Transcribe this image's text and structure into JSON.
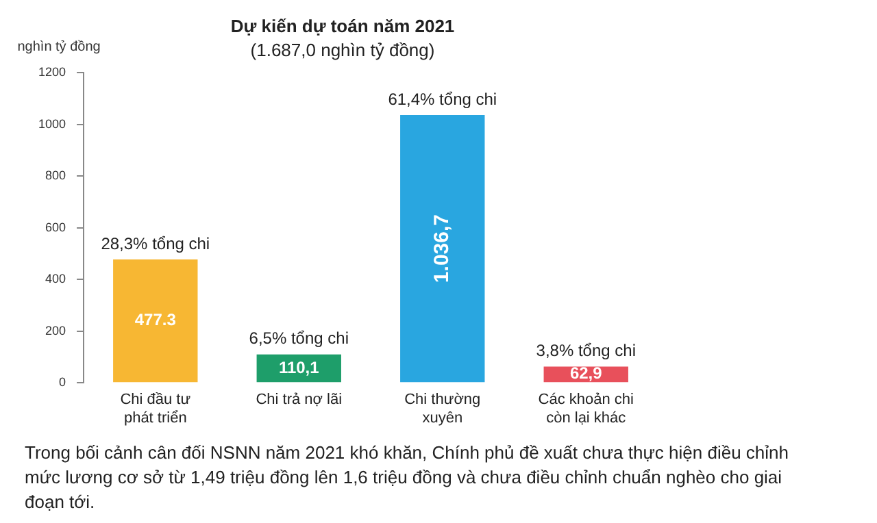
{
  "chart_data": {
    "type": "bar",
    "title": "Dự kiến dự toán năm 2021",
    "subtitle": "(1.687,0 nghìn tỷ đồng)",
    "ylabel": "nghìn tỷ đồng",
    "categories": [
      "Chi đầu tư phát triển",
      "Chi trả nợ lãi",
      "Chi thường xuyên",
      "Các khoản chi còn lại khác"
    ],
    "values": [
      477.3,
      110.1,
      1036.7,
      62.9
    ],
    "colors": [
      "#f7b733",
      "#1e9e6a",
      "#29a6e0",
      "#e8505b"
    ],
    "value_labels": [
      "477.3",
      "110,1",
      "1.036,7",
      "62,9"
    ],
    "ylim": [
      0,
      1200
    ],
    "yticks": [
      0,
      200,
      400,
      600,
      800,
      1000,
      1200
    ],
    "grid": false,
    "legend": false,
    "annotations": [
      {
        "text": "28,3% tổng chi",
        "x": "Chi đầu tư phát triển",
        "y": 477.3
      },
      {
        "text": "6,5% tổng chi",
        "x": "Chi trả nợ lãi",
        "y": 110.1
      },
      {
        "text": "61,4% tổng chi",
        "x": "Chi thường xuyên",
        "y": 1036.7
      },
      {
        "text": "3,8% tổng chi",
        "x": "Các khoản chi còn lại khác",
        "y": 62.9
      },
      "Trong bối cảnh cân đối NSNN năm 2021 khó khăn, Chính phủ đề xuất chưa thực hiện điều chỉnh mức lương cơ sở từ 1,49 triệu đồng lên 1,6 triệu đồng và chưa điều chỉnh chuẩn nghèo cho giai đoạn tới."
    ]
  }
}
